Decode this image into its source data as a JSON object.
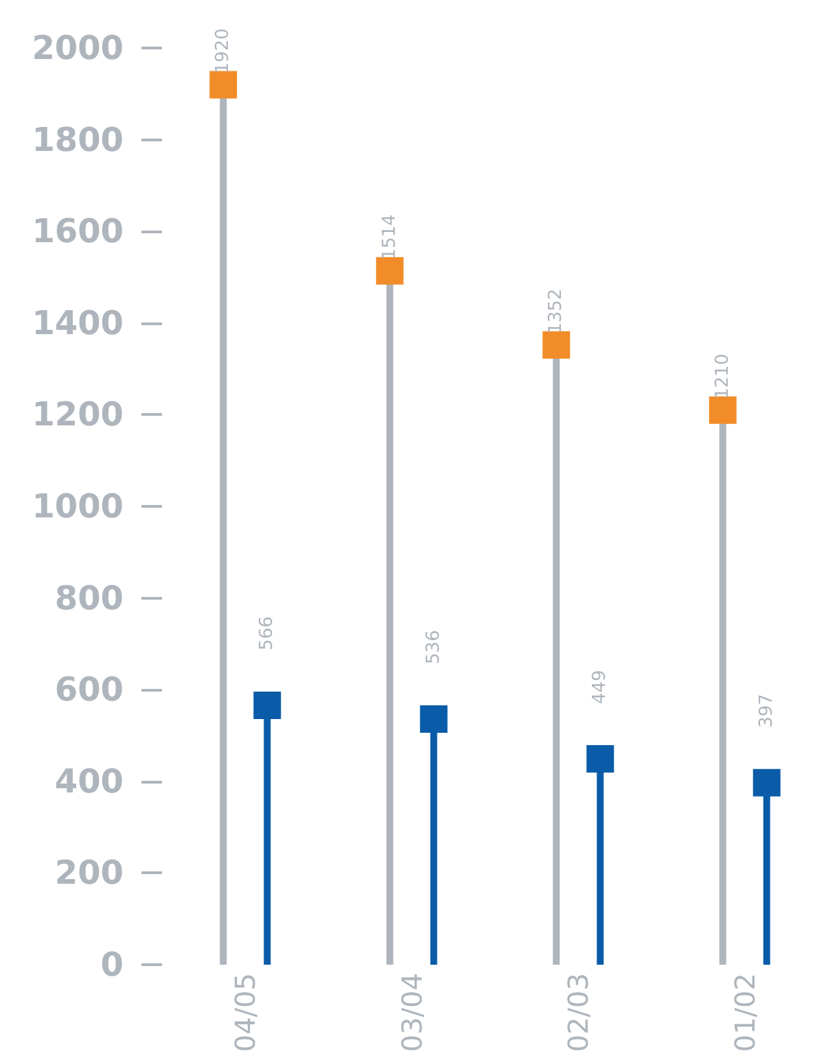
{
  "chart_data": {
    "type": "lollipop",
    "categories": [
      "04/05",
      "03/04",
      "02/03",
      "01/02"
    ],
    "series": [
      {
        "color": "#f28c28",
        "values": [
          1920,
          1514,
          1352,
          1210
        ]
      },
      {
        "color": "#0a5ca8",
        "values": [
          566,
          536,
          449,
          397
        ]
      }
    ],
    "ylim": [
      0,
      2000
    ],
    "yticks": [
      0,
      200,
      400,
      600,
      800,
      1000,
      1200,
      1400,
      1600,
      1800,
      2000
    ],
    "data_labels": true,
    "marker": "square",
    "grid": false
  }
}
